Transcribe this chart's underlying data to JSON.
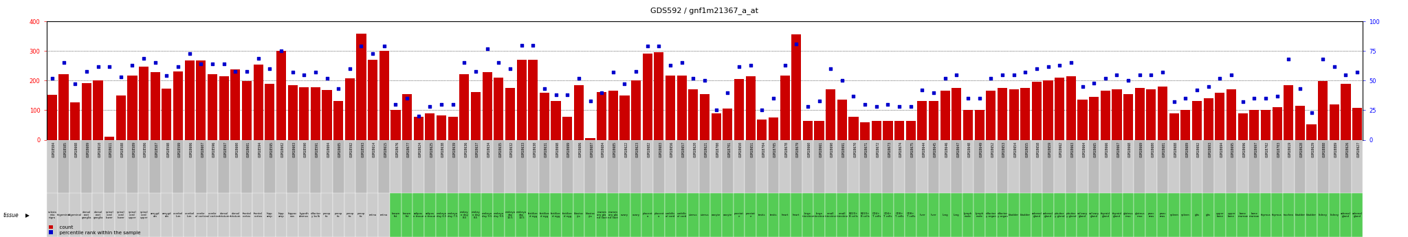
{
  "title": "GDS592 / gnf1m21367_a_at",
  "bar_color": "#CC0000",
  "dot_color": "#0000CC",
  "samples": [
    {
      "gsm": "GSM18584",
      "tissue": "substa\nntia\nnigra",
      "count": 152,
      "pct": 52,
      "group": "brain"
    },
    {
      "gsm": "GSM18585",
      "tissue": "trigeminal",
      "count": 221,
      "pct": 65,
      "group": "brain"
    },
    {
      "gsm": "GSM18608",
      "tissue": "trigeminal",
      "count": 127,
      "pct": 47,
      "group": "brain"
    },
    {
      "gsm": "GSM18609",
      "tissue": "dorsal\nroot\nganglia",
      "count": 191,
      "pct": 58,
      "group": "brain"
    },
    {
      "gsm": "GSM18610",
      "tissue": "dorsal\nroot\nganglia",
      "count": 200,
      "pct": 62,
      "group": "brain"
    },
    {
      "gsm": "GSM18611",
      "tissue": "spinal\ncord\nlower",
      "count": 10,
      "pct": 62,
      "group": "brain"
    },
    {
      "gsm": "GSM18588",
      "tissue": "spinal\ncord\nlower",
      "count": 150,
      "pct": 53,
      "group": "brain"
    },
    {
      "gsm": "GSM18589",
      "tissue": "spinal\ncord\nupper",
      "count": 218,
      "pct": 63,
      "group": "brain"
    },
    {
      "gsm": "GSM18586",
      "tissue": "spinal\ncord\nupper",
      "count": 248,
      "pct": 69,
      "group": "brain"
    },
    {
      "gsm": "GSM18587",
      "tissue": "amygd\nala",
      "count": 228,
      "pct": 65,
      "group": "brain"
    },
    {
      "gsm": "GSM18598",
      "tissue": "amygd\nala",
      "count": 172,
      "pct": 54,
      "group": "brain"
    },
    {
      "gsm": "GSM18599",
      "tissue": "cerebel\nlum",
      "count": 230,
      "pct": 62,
      "group": "brain"
    },
    {
      "gsm": "GSM18606",
      "tissue": "cerebel\nlum",
      "count": 268,
      "pct": 73,
      "group": "brain"
    },
    {
      "gsm": "GSM18607",
      "tissue": "cerebr\nal cortex",
      "count": 268,
      "pct": 64,
      "group": "brain"
    },
    {
      "gsm": "GSM18596",
      "tissue": "cerebr\nal cortex",
      "count": 222,
      "pct": 64,
      "group": "brain"
    },
    {
      "gsm": "GSM18597",
      "tissue": "dorsal\nstriatum",
      "count": 215,
      "pct": 64,
      "group": "brain"
    },
    {
      "gsm": "GSM18600",
      "tissue": "dorsal\nstriatum",
      "count": 238,
      "pct": 58,
      "group": "brain"
    },
    {
      "gsm": "GSM18601",
      "tissue": "frontal\ncortex",
      "count": 198,
      "pct": 58,
      "group": "brain"
    },
    {
      "gsm": "GSM18594",
      "tissue": "frontal\ncortex",
      "count": 253,
      "pct": 69,
      "group": "brain"
    },
    {
      "gsm": "GSM18595",
      "tissue": "hipp\namp",
      "count": 190,
      "pct": 60,
      "group": "brain"
    },
    {
      "gsm": "GSM18602",
      "tissue": "hipp\namp",
      "count": 300,
      "pct": 75,
      "group": "brain"
    },
    {
      "gsm": "GSM18603",
      "tissue": "hippoc\nous",
      "count": 185,
      "pct": 57,
      "group": "brain"
    },
    {
      "gsm": "GSM18590",
      "tissue": "hypoth\nalamus",
      "count": 178,
      "pct": 55,
      "group": "brain"
    },
    {
      "gsm": "GSM18591",
      "tissue": "olfactor\ny bulb",
      "count": 178,
      "pct": 57,
      "group": "brain"
    },
    {
      "gsm": "GSM18604",
      "tissue": "preop\ntic",
      "count": 168,
      "pct": 52,
      "group": "preop"
    },
    {
      "gsm": "GSM18605",
      "tissue": "preop\ntic",
      "count": 130,
      "pct": 43,
      "group": "preop"
    },
    {
      "gsm": "GSM18592",
      "tissue": "preop\ntic",
      "count": 208,
      "pct": 60,
      "group": "preop"
    },
    {
      "gsm": "GSM18593",
      "tissue": "preop\ntic",
      "count": 358,
      "pct": 79,
      "group": "preop"
    },
    {
      "gsm": "GSM18614",
      "tissue": "retina",
      "count": 270,
      "pct": 73,
      "group": "brain"
    },
    {
      "gsm": "GSM18615",
      "tissue": "retina",
      "count": 300,
      "pct": 79,
      "group": "brain"
    },
    {
      "gsm": "GSM18676",
      "tissue": "brown\nfat",
      "count": 100,
      "pct": 30,
      "group": "green"
    },
    {
      "gsm": "GSM18677",
      "tissue": "brown\nfat",
      "count": 155,
      "pct": 35,
      "group": "green"
    },
    {
      "gsm": "GSM18624",
      "tissue": "adipos\ne tissue",
      "count": 77,
      "pct": 20,
      "group": "green"
    },
    {
      "gsm": "GSM18625",
      "tissue": "adipos\ne tissue",
      "count": 90,
      "pct": 28,
      "group": "green"
    },
    {
      "gsm": "GSM18638",
      "tissue": "embryo\nday 6.5",
      "count": 83,
      "pct": 30,
      "group": "green"
    },
    {
      "gsm": "GSM18639",
      "tissue": "embryo\nday 7.5",
      "count": 78,
      "pct": 30,
      "group": "green"
    },
    {
      "gsm": "GSM18636",
      "tissue": "embry\no day\n8.5",
      "count": 222,
      "pct": 65,
      "group": "green"
    },
    {
      "gsm": "GSM18637",
      "tissue": "embry\no day\n8.5",
      "count": 162,
      "pct": 58,
      "group": "green"
    },
    {
      "gsm": "GSM18634",
      "tissue": "embryo\nday 9.5",
      "count": 228,
      "pct": 77,
      "group": "green"
    },
    {
      "gsm": "GSM18635",
      "tissue": "embryo\nday 9.5",
      "count": 210,
      "pct": 65,
      "group": "green"
    },
    {
      "gsm": "GSM18632",
      "tissue": "embryo\nday\n10.5",
      "count": 175,
      "pct": 60,
      "group": "green"
    },
    {
      "gsm": "GSM18633",
      "tissue": "embryo\nday\n10.5",
      "count": 270,
      "pct": 80,
      "group": "green"
    },
    {
      "gsm": "GSM18630",
      "tissue": "fertilize\nd egg",
      "count": 270,
      "pct": 80,
      "group": "green"
    },
    {
      "gsm": "GSM18631",
      "tissue": "fertilize\nd egg",
      "count": 160,
      "pct": 43,
      "group": "green"
    },
    {
      "gsm": "GSM18698",
      "tissue": "fertilize\nd egg",
      "count": 130,
      "pct": 38,
      "group": "green"
    },
    {
      "gsm": "GSM18699",
      "tissue": "fertilize\nd egg",
      "count": 78,
      "pct": 38,
      "group": "green"
    },
    {
      "gsm": "GSM18686",
      "tissue": "blastoc\nyts",
      "count": 185,
      "pct": 52,
      "group": "green"
    },
    {
      "gsm": "GSM18687",
      "tissue": "blastoc\nyts",
      "count": 5,
      "pct": 33,
      "group": "green"
    },
    {
      "gsm": "GSM18684",
      "tissue": "mamm\nary gla\nnd (lact",
      "count": 162,
      "pct": 40,
      "group": "green"
    },
    {
      "gsm": "GSM18685",
      "tissue": "mamm\nary gla\nnd (lact",
      "count": 165,
      "pct": 57,
      "group": "green"
    },
    {
      "gsm": "GSM18622",
      "tissue": "ovary",
      "count": 150,
      "pct": 47,
      "group": "green"
    },
    {
      "gsm": "GSM18623",
      "tissue": "ovary",
      "count": 200,
      "pct": 58,
      "group": "green"
    },
    {
      "gsm": "GSM18682",
      "tissue": "placent\na",
      "count": 290,
      "pct": 79,
      "group": "green"
    },
    {
      "gsm": "GSM18683",
      "tissue": "placent\na",
      "count": 295,
      "pct": 79,
      "group": "green"
    },
    {
      "gsm": "GSM18656",
      "tissue": "umbilic\nal cord",
      "count": 218,
      "pct": 63,
      "group": "green"
    },
    {
      "gsm": "GSM18657",
      "tissue": "umbilic\nal cord",
      "count": 218,
      "pct": 65,
      "group": "green"
    },
    {
      "gsm": "GSM18620",
      "tissue": "uterus",
      "count": 170,
      "pct": 52,
      "group": "green"
    },
    {
      "gsm": "GSM18621",
      "tissue": "uterus",
      "count": 155,
      "pct": 50,
      "group": "green"
    },
    {
      "gsm": "GSM18700",
      "tissue": "oocyte",
      "count": 90,
      "pct": 25,
      "group": "green"
    },
    {
      "gsm": "GSM18701",
      "tissue": "oocyte",
      "count": 105,
      "pct": 40,
      "group": "green"
    },
    {
      "gsm": "GSM18650",
      "tissue": "prostat\ne",
      "count": 205,
      "pct": 62,
      "group": "green"
    },
    {
      "gsm": "GSM18651",
      "tissue": "prostat\ne",
      "count": 215,
      "pct": 63,
      "group": "green"
    },
    {
      "gsm": "GSM18704",
      "tissue": "testis",
      "count": 68,
      "pct": 25,
      "group": "green"
    },
    {
      "gsm": "GSM18705",
      "tissue": "testis",
      "count": 75,
      "pct": 35,
      "group": "green"
    },
    {
      "gsm": "GSM18678",
      "tissue": "heart",
      "count": 218,
      "pct": 63,
      "group": "green"
    },
    {
      "gsm": "GSM18679",
      "tissue": "heart",
      "count": 355,
      "pct": 81,
      "group": "green"
    },
    {
      "gsm": "GSM18660",
      "tissue": "large\nintestine",
      "count": 65,
      "pct": 28,
      "group": "green"
    },
    {
      "gsm": "GSM18661",
      "tissue": "large\nintestine",
      "count": 65,
      "pct": 33,
      "group": "green"
    },
    {
      "gsm": "GSM18690",
      "tissue": "small\nintestine",
      "count": 170,
      "pct": 60,
      "group": "green"
    },
    {
      "gsm": "GSM18691",
      "tissue": "small\nintestine",
      "count": 135,
      "pct": 50,
      "group": "green"
    },
    {
      "gsm": "GSM18670",
      "tissue": "B220+\nB cells",
      "count": 78,
      "pct": 37,
      "group": "green"
    },
    {
      "gsm": "GSM18671",
      "tissue": "B220+\nB cells",
      "count": 60,
      "pct": 30,
      "group": "green"
    },
    {
      "gsm": "GSM18672",
      "tissue": "CD4+\nT cells",
      "count": 65,
      "pct": 28,
      "group": "green"
    },
    {
      "gsm": "GSM18673",
      "tissue": "CD4+\nT cells",
      "count": 65,
      "pct": 30,
      "group": "green"
    },
    {
      "gsm": "GSM18674",
      "tissue": "CD8+\nT cells",
      "count": 65,
      "pct": 28,
      "group": "green"
    },
    {
      "gsm": "GSM18675",
      "tissue": "CD8+\nT cells",
      "count": 65,
      "pct": 28,
      "group": "green"
    },
    {
      "gsm": "GSM18644",
      "tissue": "liver",
      "count": 130,
      "pct": 42,
      "group": "green"
    },
    {
      "gsm": "GSM18645",
      "tissue": "liver",
      "count": 130,
      "pct": 40,
      "group": "green"
    },
    {
      "gsm": "GSM18646",
      "tissue": "lung",
      "count": 165,
      "pct": 52,
      "group": "green"
    },
    {
      "gsm": "GSM18647",
      "tissue": "lung",
      "count": 175,
      "pct": 55,
      "group": "green"
    },
    {
      "gsm": "GSM18648",
      "tissue": "lymph\nnode",
      "count": 100,
      "pct": 35,
      "group": "green"
    },
    {
      "gsm": "GSM18649",
      "tissue": "lymph\nnode",
      "count": 100,
      "pct": 35,
      "group": "green"
    },
    {
      "gsm": "GSM18652",
      "tissue": "olfactor\ny organ",
      "count": 165,
      "pct": 52,
      "group": "green"
    },
    {
      "gsm": "GSM18653",
      "tissue": "olfactor\ny organ",
      "count": 175,
      "pct": 55,
      "group": "green"
    },
    {
      "gsm": "GSM18654",
      "tissue": "bladder",
      "count": 170,
      "pct": 55,
      "group": "green"
    },
    {
      "gsm": "GSM18655",
      "tissue": "bladder",
      "count": 175,
      "pct": 57,
      "group": "green"
    },
    {
      "gsm": "GSM18658",
      "tissue": "adrenal\ngland",
      "count": 195,
      "pct": 60,
      "group": "green"
    },
    {
      "gsm": "GSM18659",
      "tissue": "adrenal\ngland",
      "count": 200,
      "pct": 62,
      "group": "green"
    },
    {
      "gsm": "GSM18662",
      "tissue": "pituitar\ny gland",
      "count": 210,
      "pct": 63,
      "group": "green"
    },
    {
      "gsm": "GSM18663",
      "tissue": "pituitar\ny gland",
      "count": 215,
      "pct": 65,
      "group": "green"
    },
    {
      "gsm": "GSM18664",
      "tissue": "salivary\ngland",
      "count": 135,
      "pct": 45,
      "group": "green"
    },
    {
      "gsm": "GSM18665",
      "tissue": "salivary\ngland",
      "count": 145,
      "pct": 48,
      "group": "green"
    },
    {
      "gsm": "GSM18666",
      "tissue": "thyroid\ngland",
      "count": 165,
      "pct": 52,
      "group": "green"
    },
    {
      "gsm": "GSM18667",
      "tissue": "thyroid\ngland",
      "count": 170,
      "pct": 55,
      "group": "green"
    },
    {
      "gsm": "GSM18668",
      "tissue": "gluteus\nmax",
      "count": 155,
      "pct": 50,
      "group": "green"
    },
    {
      "gsm": "GSM18669",
      "tissue": "gluteus\nmax",
      "count": 175,
      "pct": 55,
      "group": "green"
    },
    {
      "gsm": "GSM18680",
      "tissue": "panc\nreas",
      "count": 170,
      "pct": 55,
      "group": "green"
    },
    {
      "gsm": "GSM18681",
      "tissue": "panc\nreas",
      "count": 180,
      "pct": 57,
      "group": "green"
    },
    {
      "gsm": "GSM18688",
      "tissue": "spleen",
      "count": 90,
      "pct": 32,
      "group": "green"
    },
    {
      "gsm": "GSM18689",
      "tissue": "spleen",
      "count": 100,
      "pct": 35,
      "group": "green"
    },
    {
      "gsm": "GSM18692",
      "tissue": "glts",
      "count": 130,
      "pct": 42,
      "group": "green"
    },
    {
      "gsm": "GSM18693",
      "tissue": "glts",
      "count": 140,
      "pct": 45,
      "group": "green"
    },
    {
      "gsm": "GSM18694",
      "tissue": "upper\nbone",
      "count": 160,
      "pct": 52,
      "group": "green"
    },
    {
      "gsm": "GSM18695",
      "tissue": "upper\nbone",
      "count": 170,
      "pct": 55,
      "group": "green"
    },
    {
      "gsm": "GSM18696",
      "tissue": "bone\nmarrow",
      "count": 90,
      "pct": 32,
      "group": "green"
    },
    {
      "gsm": "GSM18697",
      "tissue": "bone\nmarrow",
      "count": 100,
      "pct": 35,
      "group": "green"
    },
    {
      "gsm": "GSM18702",
      "tissue": "thymus",
      "count": 100,
      "pct": 35,
      "group": "green"
    },
    {
      "gsm": "GSM18703",
      "tissue": "thymus",
      "count": 110,
      "pct": 37,
      "group": "green"
    },
    {
      "gsm": "GSM18619",
      "tissue": "trachea",
      "count": 185,
      "pct": 68,
      "group": "green"
    },
    {
      "gsm": "GSM18628",
      "tissue": "bladder",
      "count": 115,
      "pct": 43,
      "group": "green"
    },
    {
      "gsm": "GSM18629",
      "tissue": "bladder",
      "count": 52,
      "pct": 23,
      "group": "green"
    },
    {
      "gsm": "GSM18888",
      "tissue": "kidney",
      "count": 198,
      "pct": 68,
      "group": "green"
    },
    {
      "gsm": "GSM18889",
      "tissue": "kidney",
      "count": 120,
      "pct": 62,
      "group": "green"
    },
    {
      "gsm": "GSM18626",
      "tissue": "adrenal\ngland",
      "count": 188,
      "pct": 55,
      "group": "green"
    },
    {
      "gsm": "GSM18627",
      "tissue": "adrenal\ngland",
      "count": 108,
      "pct": 57,
      "group": "green"
    }
  ],
  "group_colors": {
    "brain": "#CCCCCC",
    "preop": "#CCCCCC",
    "green": "#66CC66"
  }
}
